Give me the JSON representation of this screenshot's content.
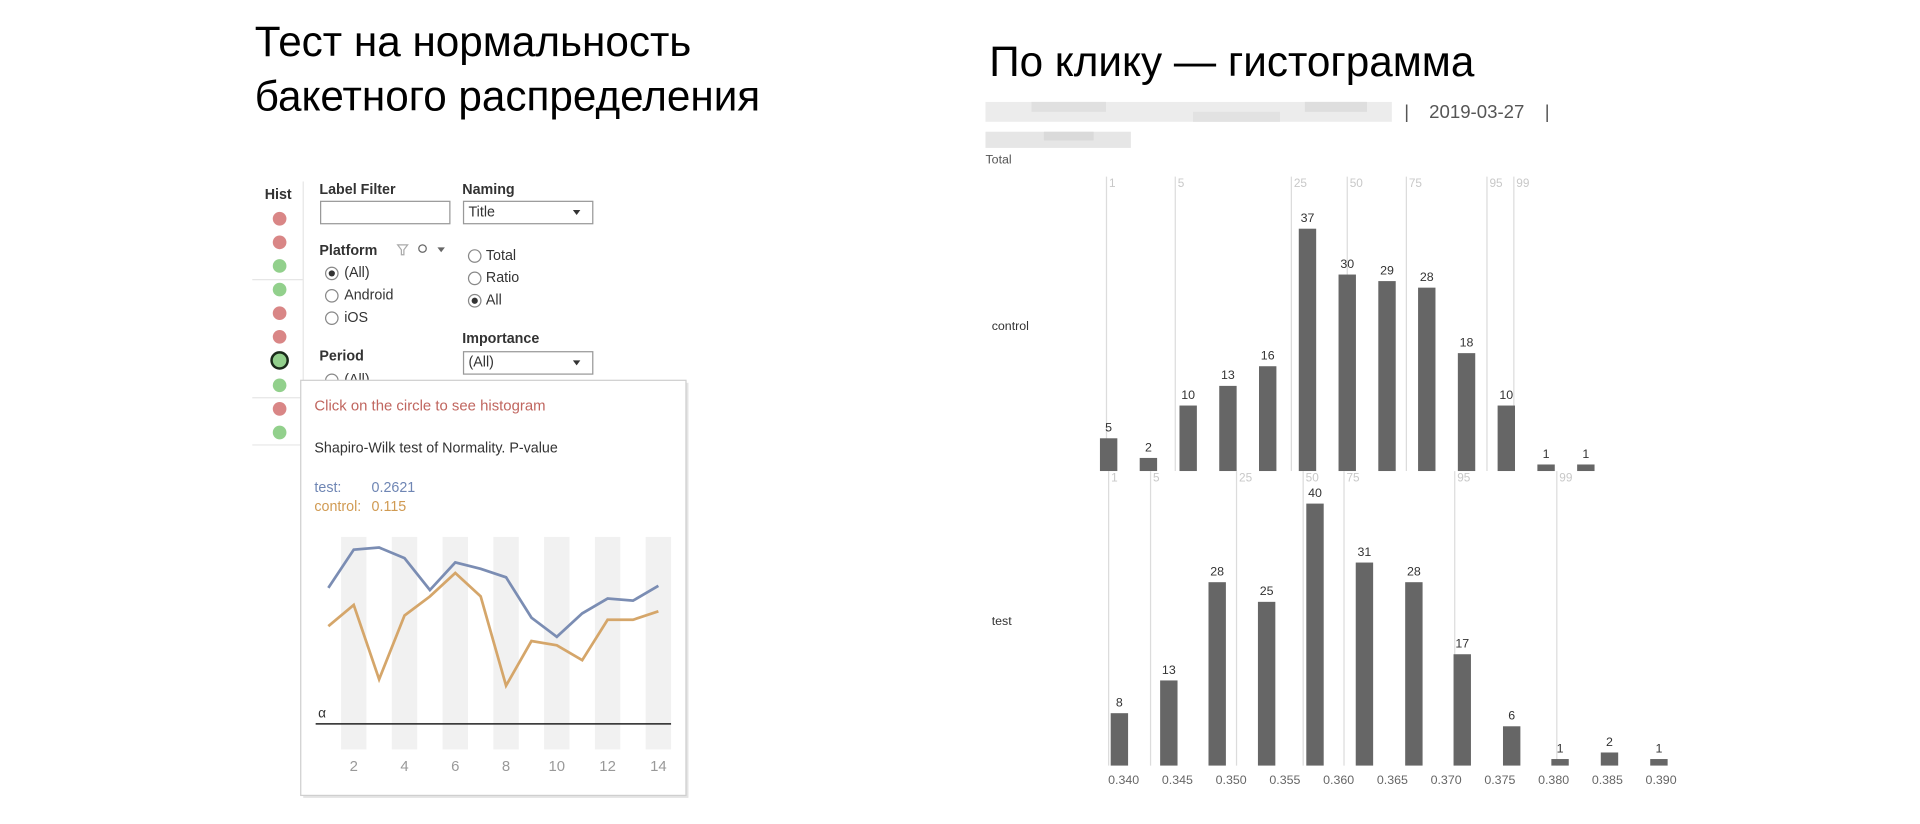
{
  "left_title": [
    "Тест на нормальность",
    "бакетного распределения"
  ],
  "right_title": "По клику — гистограмма",
  "histogram_header": {
    "separators": [
      "|",
      "|"
    ],
    "date": "2019-03-27",
    "total_label": "Total"
  },
  "filter_panel": {
    "hist_label": "Hist",
    "label_filter": "Label Filter",
    "naming": {
      "label": "Naming",
      "value": "Title"
    },
    "platform": {
      "label": "Platform",
      "options": [
        "(All)",
        "Android",
        "iOS"
      ]
    },
    "measure_options": [
      "Total",
      "Ratio",
      "All"
    ],
    "importance": {
      "label": "Importance",
      "value": "(All)"
    },
    "period": {
      "label": "Period",
      "value": "(All)"
    }
  },
  "tooltip": {
    "hint": "Click  on the circle to see histogram",
    "rows": [
      {
        "label": "test:",
        "value": 0.2621,
        "color": "#6f86b4"
      },
      {
        "label": "control:",
        "value": 0.115,
        "color": "#d09a52"
      }
    ]
  },
  "chart_data": [
    {
      "type": "line",
      "title": "Shapiro-Wilk test of Normality. P-value",
      "x": [
        1,
        2,
        3,
        4,
        5,
        6,
        7,
        8,
        9,
        10,
        11,
        12,
        13,
        14
      ],
      "xlim": [
        0.5,
        14.5
      ],
      "xticks": [
        2,
        4,
        6,
        8,
        10,
        12,
        14
      ],
      "ylim": [
        0,
        1
      ],
      "bands": true,
      "series": [
        {
          "color": "#7b8db3",
          "values": [
            0.76,
            0.94,
            0.95,
            0.9,
            0.75,
            0.88,
            0.85,
            0.81,
            0.62,
            0.53,
            0.64,
            0.71,
            0.7,
            0.77
          ]
        },
        {
          "color": "#d5a66a",
          "values": [
            0.58,
            0.68,
            0.33,
            0.63,
            0.72,
            0.83,
            0.72,
            0.3,
            0.51,
            0.49,
            0.42,
            0.61,
            0.61,
            0.65
          ]
        }
      ],
      "threshold": {
        "label": "α",
        "value": 0.12
      }
    },
    {
      "type": "bar",
      "panel_label": "control",
      "color": "#666666",
      "x": [
        0.3386,
        0.3423,
        0.346,
        0.3497,
        0.3534,
        0.3571,
        0.3608,
        0.3645,
        0.3682,
        0.3719,
        0.3756,
        0.3793,
        0.383
      ],
      "values": [
        5,
        2,
        10,
        13,
        16,
        37,
        30,
        29,
        28,
        18,
        10,
        1,
        1
      ],
      "xlim": [
        0.3372,
        0.3927
      ],
      "ylim": [
        0,
        44
      ],
      "percentiles": [
        {
          "label": "1",
          "value": 0.3384
        },
        {
          "label": "5",
          "value": 0.3448
        },
        {
          "label": "25",
          "value": 0.3556
        },
        {
          "label": "50",
          "value": 0.3608
        },
        {
          "label": "75",
          "value": 0.3663
        },
        {
          "label": "95",
          "value": 0.3738
        },
        {
          "label": "99",
          "value": 0.3763
        }
      ]
    },
    {
      "type": "bar",
      "panel_label": "test",
      "color": "#666666",
      "x": [
        0.3396,
        0.3442,
        0.3487,
        0.3533,
        0.3578,
        0.3624,
        0.367,
        0.3715,
        0.3761,
        0.3806,
        0.3852,
        0.3898
      ],
      "values": [
        8,
        13,
        28,
        25,
        40,
        31,
        28,
        17,
        6,
        1,
        2,
        1
      ],
      "xlim": [
        0.3372,
        0.3927
      ],
      "ylim": [
        0,
        44
      ],
      "xticks": [
        {
          "value": 0.34,
          "label": "0.340"
        },
        {
          "value": 0.345,
          "label": "0.345"
        },
        {
          "value": 0.35,
          "label": "0.350"
        },
        {
          "value": 0.355,
          "label": "0.355"
        },
        {
          "value": 0.36,
          "label": "0.360"
        },
        {
          "value": 0.365,
          "label": "0.365"
        },
        {
          "value": 0.37,
          "label": "0.370"
        },
        {
          "value": 0.375,
          "label": "0.375"
        },
        {
          "value": 0.38,
          "label": "0.380"
        },
        {
          "value": 0.385,
          "label": "0.385"
        },
        {
          "value": 0.39,
          "label": "0.390"
        }
      ],
      "percentiles": [
        {
          "label": "1",
          "value": 0.3386
        },
        {
          "label": "5",
          "value": 0.3425
        },
        {
          "label": "25",
          "value": 0.3505
        },
        {
          "label": "50",
          "value": 0.3567
        },
        {
          "label": "75",
          "value": 0.3605
        },
        {
          "label": "95",
          "value": 0.3708
        },
        {
          "label": "99",
          "value": 0.3803
        }
      ]
    }
  ]
}
